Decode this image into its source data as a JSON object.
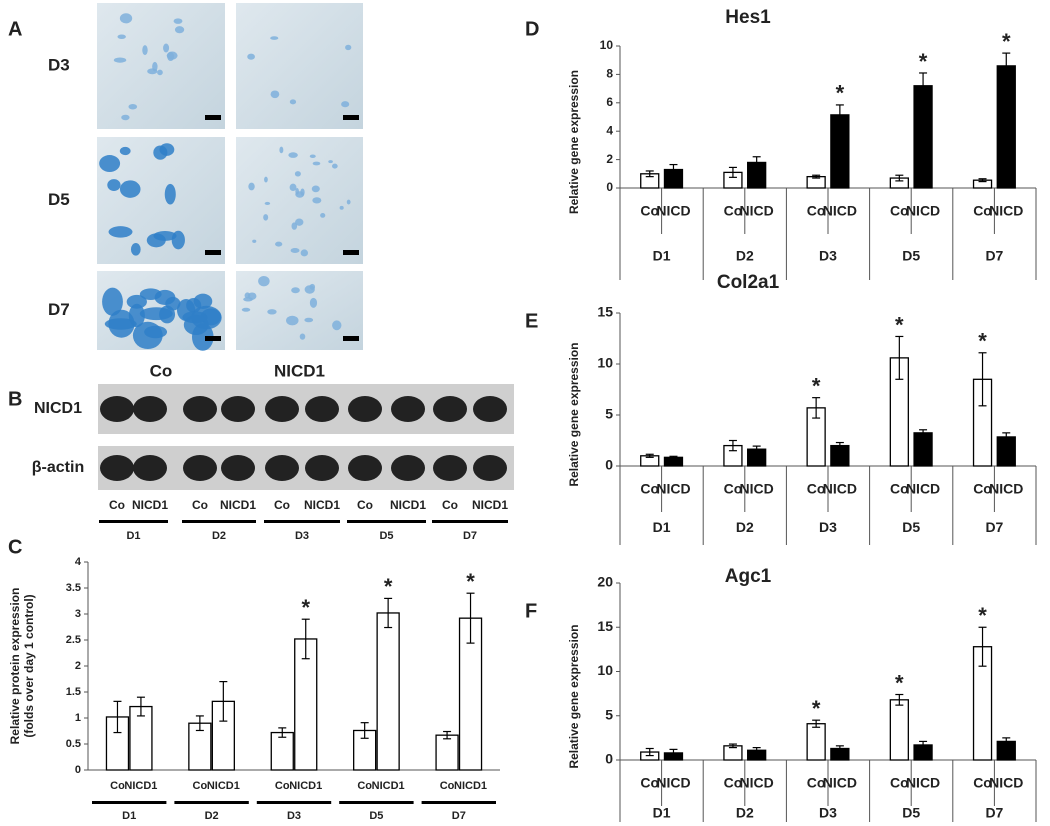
{
  "panels": {
    "A": {
      "letter": "A",
      "rows": [
        "D3",
        "D5",
        "D7"
      ],
      "columns": [
        "Co",
        "NICD1"
      ]
    },
    "B": {
      "letter": "B",
      "rows": [
        "NICD1",
        "β-actin"
      ],
      "lanes": [
        "Co",
        "NICD1"
      ],
      "groups": [
        "D1",
        "D2",
        "D3",
        "D5",
        "D7"
      ]
    }
  },
  "chart_data": [
    {
      "type": "bar",
      "panel": "C",
      "ylabel": [
        "Relative  protein expression",
        "(folds over day 1 control)"
      ],
      "categories": [
        "D1",
        "D2",
        "D3",
        "D5",
        "D7"
      ],
      "series": [
        {
          "name": "Co",
          "color": "#ffffff",
          "values": [
            1.02,
            0.9,
            0.72,
            0.76,
            0.67
          ],
          "errors": [
            0.3,
            0.14,
            0.09,
            0.15,
            0.07
          ],
          "markers": [
            null,
            null,
            null,
            null,
            null
          ]
        },
        {
          "name": "NICD1",
          "color": "#ffffff",
          "values": [
            1.22,
            1.32,
            2.52,
            3.02,
            2.92
          ],
          "errors": [
            0.18,
            0.38,
            0.38,
            0.28,
            0.48
          ],
          "markers": [
            null,
            null,
            "*",
            "*",
            "*"
          ]
        }
      ],
      "ylim": [
        0,
        4
      ],
      "yticks": [
        0,
        0.5,
        1,
        1.5,
        2,
        2.5,
        3,
        3.5,
        4
      ]
    },
    {
      "type": "bar",
      "panel": "D",
      "title": "Hes1",
      "ylabel": [
        "Relative gene expression"
      ],
      "categories": [
        "D1",
        "D2",
        "D3",
        "D5",
        "D7"
      ],
      "series": [
        {
          "name": "Co",
          "color": "#ffffff",
          "values": [
            1.0,
            1.1,
            0.8,
            0.7,
            0.55
          ],
          "errors": [
            0.2,
            0.35,
            0.1,
            0.2,
            0.1
          ],
          "markers": [
            null,
            null,
            null,
            null,
            null
          ]
        },
        {
          "name": "NICD",
          "color": "#000000",
          "values": [
            1.3,
            1.8,
            5.15,
            7.2,
            8.6
          ],
          "errors": [
            0.35,
            0.4,
            0.7,
            0.9,
            0.9
          ],
          "markers": [
            null,
            null,
            "*",
            "*",
            "*"
          ]
        }
      ],
      "ylim": [
        0,
        10
      ],
      "yticks": [
        0,
        2,
        4,
        6,
        8,
        10
      ]
    },
    {
      "type": "bar",
      "panel": "E",
      "title": "Col2a1",
      "ylabel": [
        "Relative gene expression"
      ],
      "categories": [
        "D1",
        "D2",
        "D3",
        "D5",
        "D7"
      ],
      "series": [
        {
          "name": "Co",
          "color": "#ffffff",
          "values": [
            1.0,
            2.0,
            5.7,
            10.6,
            8.5
          ],
          "errors": [
            0.15,
            0.5,
            1.0,
            2.1,
            2.6
          ],
          "markers": [
            null,
            null,
            "*",
            "*",
            "*"
          ]
        },
        {
          "name": "NICD",
          "color": "#000000",
          "values": [
            0.85,
            1.65,
            2.0,
            3.25,
            2.85
          ],
          "errors": [
            0.1,
            0.3,
            0.3,
            0.3,
            0.4
          ],
          "markers": [
            null,
            null,
            null,
            null,
            null
          ]
        }
      ],
      "ylim": [
        0,
        15
      ],
      "yticks": [
        0,
        5,
        10,
        15
      ]
    },
    {
      "type": "bar",
      "panel": "F",
      "title": "Agc1",
      "ylabel": [
        "Relative gene expression"
      ],
      "categories": [
        "D1",
        "D2",
        "D3",
        "D5",
        "D7"
      ],
      "series": [
        {
          "name": "Co",
          "color": "#ffffff",
          "values": [
            0.9,
            1.6,
            4.1,
            6.8,
            12.8
          ],
          "errors": [
            0.4,
            0.2,
            0.4,
            0.6,
            2.2
          ],
          "markers": [
            null,
            null,
            "*",
            "*",
            "*"
          ]
        },
        {
          "name": "NICD",
          "color": "#000000",
          "values": [
            0.8,
            1.1,
            1.3,
            1.7,
            2.1
          ],
          "errors": [
            0.4,
            0.3,
            0.3,
            0.4,
            0.4
          ],
          "markers": [
            null,
            null,
            null,
            null,
            null
          ]
        }
      ],
      "ylim": [
        0,
        20
      ],
      "yticks": [
        0,
        5,
        10,
        15,
        20
      ]
    }
  ]
}
